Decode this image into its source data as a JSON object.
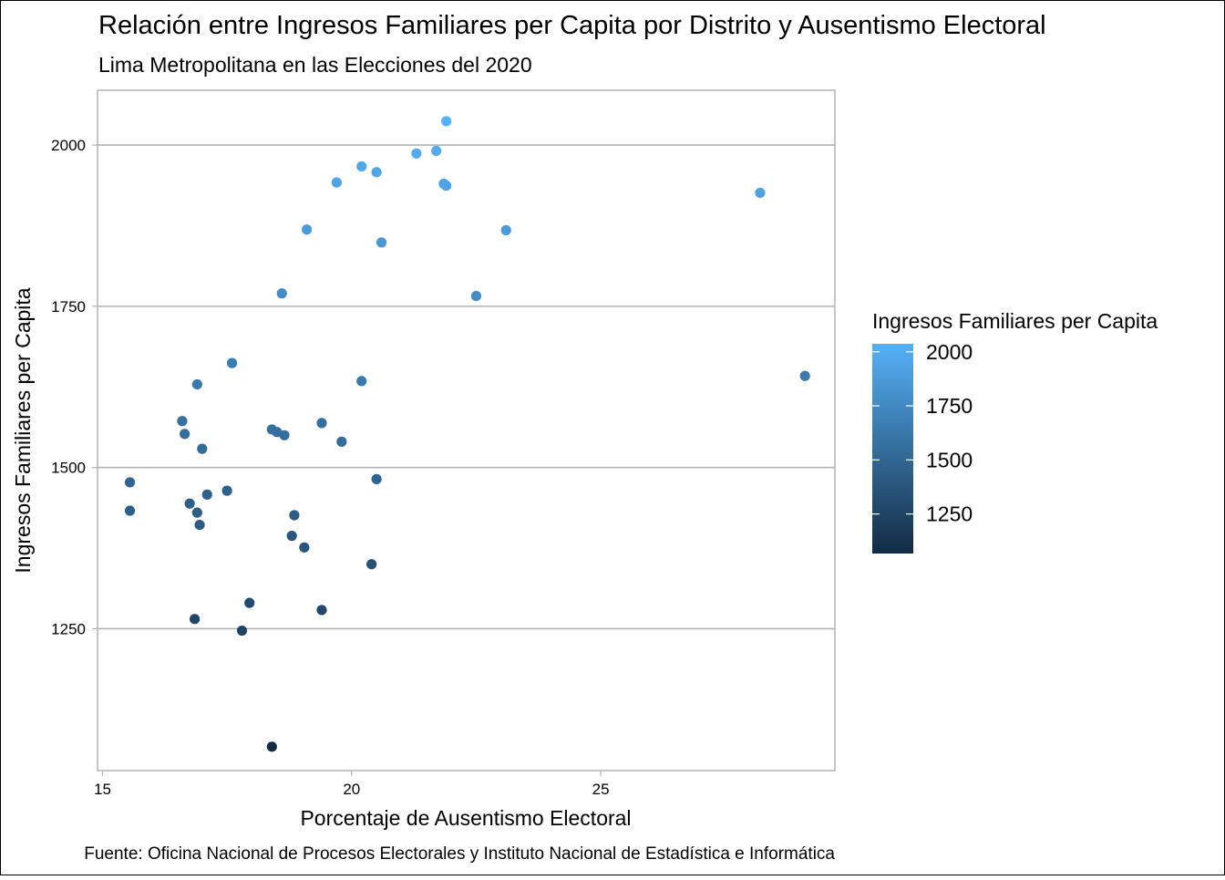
{
  "chart_data": {
    "type": "scatter",
    "title": "Relación entre Ingresos Familiares per Capita por Distrito y Ausentismo Electoral",
    "subtitle": "Lima Metropolitana en las Elecciones del 2020",
    "xlabel": "Porcentaje de Ausentismo Electoral",
    "ylabel": "Ingresos Familiares per Capita",
    "caption": "Fuente: Oficina Nacional de Procesos Electorales y Instituto Nacional de Estadística e Informática",
    "xlim": [
      14.9,
      29.7
    ],
    "ylim": [
      1030,
      2085
    ],
    "x_ticks": [
      15,
      20,
      25
    ],
    "x_tick_labels": [
      "15",
      "20",
      "25"
    ],
    "y_ticks": [
      1250,
      1500,
      1750,
      2000
    ],
    "y_tick_labels": [
      "1250",
      "1500",
      "1750",
      "2000"
    ],
    "grid": "horizontal major lines",
    "legend": {
      "title": "Ingresos Familiares per Capita",
      "type": "colorbar",
      "placement": "right",
      "range": [
        1067,
        2037
      ],
      "ticks": [
        1250,
        1500,
        1750,
        2000
      ],
      "tick_labels": [
        "1250",
        "1500",
        "1750",
        "2000"
      ],
      "low_color": "#132B43",
      "high_color": "#56B1F7"
    },
    "points": [
      {
        "x": 21.9,
        "y": 2037
      },
      {
        "x": 21.7,
        "y": 1991
      },
      {
        "x": 21.3,
        "y": 1987
      },
      {
        "x": 20.2,
        "y": 1967
      },
      {
        "x": 20.5,
        "y": 1958
      },
      {
        "x": 19.7,
        "y": 1942
      },
      {
        "x": 21.85,
        "y": 1940
      },
      {
        "x": 21.9,
        "y": 1937
      },
      {
        "x": 28.2,
        "y": 1926
      },
      {
        "x": 19.1,
        "y": 1869
      },
      {
        "x": 23.1,
        "y": 1868
      },
      {
        "x": 20.6,
        "y": 1849
      },
      {
        "x": 18.6,
        "y": 1770
      },
      {
        "x": 22.5,
        "y": 1766
      },
      {
        "x": 17.6,
        "y": 1662
      },
      {
        "x": 29.1,
        "y": 1642
      },
      {
        "x": 20.2,
        "y": 1634
      },
      {
        "x": 16.9,
        "y": 1629
      },
      {
        "x": 16.6,
        "y": 1572
      },
      {
        "x": 19.4,
        "y": 1569
      },
      {
        "x": 18.4,
        "y": 1559
      },
      {
        "x": 18.5,
        "y": 1555
      },
      {
        "x": 16.65,
        "y": 1552
      },
      {
        "x": 18.65,
        "y": 1550
      },
      {
        "x": 19.8,
        "y": 1540
      },
      {
        "x": 17.0,
        "y": 1529
      },
      {
        "x": 20.5,
        "y": 1482
      },
      {
        "x": 15.55,
        "y": 1477
      },
      {
        "x": 17.5,
        "y": 1464
      },
      {
        "x": 17.1,
        "y": 1458
      },
      {
        "x": 16.75,
        "y": 1444
      },
      {
        "x": 15.55,
        "y": 1433
      },
      {
        "x": 16.9,
        "y": 1430
      },
      {
        "x": 18.85,
        "y": 1426
      },
      {
        "x": 16.95,
        "y": 1411
      },
      {
        "x": 18.8,
        "y": 1394
      },
      {
        "x": 19.05,
        "y": 1376
      },
      {
        "x": 20.4,
        "y": 1350
      },
      {
        "x": 17.95,
        "y": 1290
      },
      {
        "x": 19.4,
        "y": 1279
      },
      {
        "x": 16.85,
        "y": 1265
      },
      {
        "x": 17.8,
        "y": 1247
      },
      {
        "x": 18.4,
        "y": 1067
      }
    ]
  }
}
